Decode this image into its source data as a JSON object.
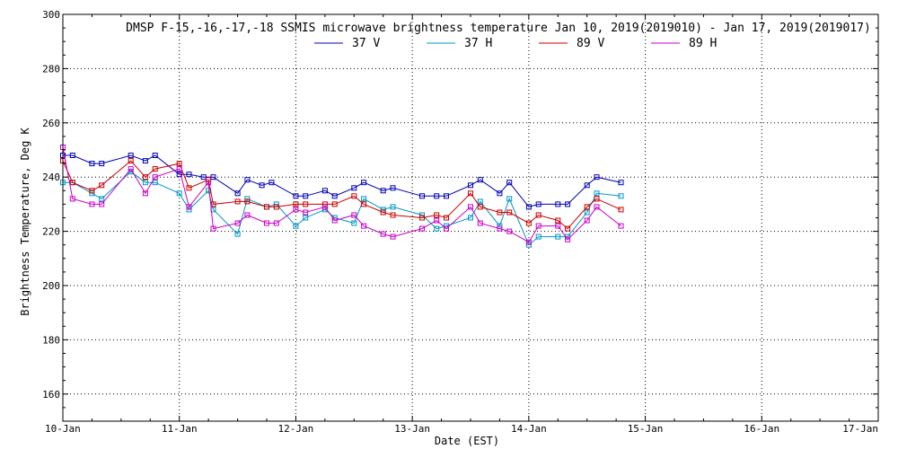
{
  "chart_data": {
    "type": "line",
    "title": "DMSP F-15,-16,-17,-18 SSMIS microwave brightness temperature Jan 10, 2019(2019010) - Jan 17, 2019(2019017)",
    "xlabel": "Date (EST)",
    "ylabel": "Brightness Temperature, Deg K",
    "x_ticks": [
      "10-Jan",
      "11-Jan",
      "12-Jan",
      "13-Jan",
      "14-Jan",
      "15-Jan",
      "16-Jan",
      "17-Jan"
    ],
    "y_ticks": [
      160,
      180,
      200,
      220,
      240,
      260,
      280,
      300
    ],
    "xlim": [
      "2019-01-10 00:00",
      "2019-01-17 00:00"
    ],
    "ylim": [
      150,
      300
    ],
    "grid": true,
    "legend_position": "top-center",
    "series": [
      {
        "name": "37 V",
        "color": "#0000b4",
        "x": [
          "2019-01-10 00:00",
          "2019-01-10 02:00",
          "2019-01-10 06:00",
          "2019-01-10 08:00",
          "2019-01-10 14:00",
          "2019-01-10 17:00",
          "2019-01-10 19:00",
          "2019-01-11 00:00",
          "2019-01-11 02:00",
          "2019-01-11 05:00",
          "2019-01-11 07:00",
          "2019-01-11 12:00",
          "2019-01-11 14:00",
          "2019-01-11 17:00",
          "2019-01-11 19:00",
          "2019-01-12 00:00",
          "2019-01-12 02:00",
          "2019-01-12 06:00",
          "2019-01-12 08:00",
          "2019-01-12 12:00",
          "2019-01-12 14:00",
          "2019-01-12 18:00",
          "2019-01-12 20:00",
          "2019-01-13 02:00",
          "2019-01-13 05:00",
          "2019-01-13 07:00",
          "2019-01-13 12:00",
          "2019-01-13 14:00",
          "2019-01-13 18:00",
          "2019-01-13 20:00",
          "2019-01-14 00:00",
          "2019-01-14 02:00",
          "2019-01-14 06:00",
          "2019-01-14 08:00",
          "2019-01-14 12:00",
          "2019-01-14 14:00",
          "2019-01-14 19:00"
        ],
        "values": [
          248,
          248,
          245,
          245,
          248,
          246,
          248,
          241,
          241,
          240,
          240,
          234,
          239,
          237,
          238,
          233,
          233,
          235,
          233,
          236,
          238,
          235,
          236,
          233,
          233,
          233,
          237,
          239,
          234,
          238,
          229,
          230,
          230,
          230,
          237,
          240,
          238
        ]
      },
      {
        "name": "37 H",
        "color": "#0096c8",
        "x": [
          "2019-01-10 00:00",
          "2019-01-10 02:00",
          "2019-01-10 06:00",
          "2019-01-10 08:00",
          "2019-01-10 14:00",
          "2019-01-10 17:00",
          "2019-01-10 19:00",
          "2019-01-11 00:00",
          "2019-01-11 02:00",
          "2019-01-11 06:00",
          "2019-01-11 07:00",
          "2019-01-11 12:00",
          "2019-01-11 14:00",
          "2019-01-11 18:00",
          "2019-01-11 20:00",
          "2019-01-12 00:00",
          "2019-01-12 02:00",
          "2019-01-12 06:00",
          "2019-01-12 08:00",
          "2019-01-12 12:00",
          "2019-01-12 14:00",
          "2019-01-12 18:00",
          "2019-01-12 20:00",
          "2019-01-13 02:00",
          "2019-01-13 05:00",
          "2019-01-13 07:00",
          "2019-01-13 12:00",
          "2019-01-13 14:00",
          "2019-01-13 18:00",
          "2019-01-13 20:00",
          "2019-01-14 00:00",
          "2019-01-14 02:00",
          "2019-01-14 06:00",
          "2019-01-14 08:00",
          "2019-01-14 12:00",
          "2019-01-14 14:00",
          "2019-01-14 19:00"
        ],
        "values": [
          238,
          238,
          234,
          232,
          242,
          238,
          238,
          234,
          228,
          235,
          228,
          219,
          232,
          229,
          230,
          222,
          225,
          228,
          225,
          223,
          232,
          228,
          229,
          226,
          221,
          222,
          225,
          231,
          222,
          232,
          215,
          218,
          218,
          218,
          227,
          234,
          233
        ]
      },
      {
        "name": "89 V",
        "color": "#c80000",
        "x": [
          "2019-01-10 00:00",
          "2019-01-10 02:00",
          "2019-01-10 06:00",
          "2019-01-10 08:00",
          "2019-01-10 14:00",
          "2019-01-10 17:00",
          "2019-01-10 19:00",
          "2019-01-11 00:00",
          "2019-01-11 02:00",
          "2019-01-11 06:00",
          "2019-01-11 07:00",
          "2019-01-11 12:00",
          "2019-01-11 14:00",
          "2019-01-11 18:00",
          "2019-01-11 20:00",
          "2019-01-12 00:00",
          "2019-01-12 02:00",
          "2019-01-12 06:00",
          "2019-01-12 08:00",
          "2019-01-12 12:00",
          "2019-01-12 14:00",
          "2019-01-12 18:00",
          "2019-01-12 20:00",
          "2019-01-13 02:00",
          "2019-01-13 05:00",
          "2019-01-13 07:00",
          "2019-01-13 12:00",
          "2019-01-13 14:00",
          "2019-01-13 18:00",
          "2019-01-13 20:00",
          "2019-01-14 00:00",
          "2019-01-14 02:00",
          "2019-01-14 06:00",
          "2019-01-14 08:00",
          "2019-01-14 12:00",
          "2019-01-14 14:00",
          "2019-01-14 19:00"
        ],
        "values": [
          246,
          238,
          235,
          237,
          246,
          240,
          243,
          245,
          236,
          239,
          230,
          231,
          231,
          229,
          229,
          230,
          230,
          230,
          230,
          233,
          230,
          227,
          226,
          225,
          226,
          225,
          234,
          229,
          227,
          227,
          223,
          226,
          224,
          221,
          229,
          232,
          228
        ]
      },
      {
        "name": "89 H",
        "color": "#c800c8",
        "x": [
          "2019-01-10 00:00",
          "2019-01-10 02:00",
          "2019-01-10 06:00",
          "2019-01-10 08:00",
          "2019-01-10 14:00",
          "2019-01-10 17:00",
          "2019-01-10 19:00",
          "2019-01-11 00:00",
          "2019-01-11 02:00",
          "2019-01-11 06:00",
          "2019-01-11 07:00",
          "2019-01-11 12:00",
          "2019-01-11 14:00",
          "2019-01-11 18:00",
          "2019-01-11 20:00",
          "2019-01-12 00:00",
          "2019-01-12 02:00",
          "2019-01-12 06:00",
          "2019-01-12 08:00",
          "2019-01-12 12:00",
          "2019-01-12 14:00",
          "2019-01-12 18:00",
          "2019-01-12 20:00",
          "2019-01-13 02:00",
          "2019-01-13 05:00",
          "2019-01-13 07:00",
          "2019-01-13 12:00",
          "2019-01-13 14:00",
          "2019-01-13 18:00",
          "2019-01-13 20:00",
          "2019-01-14 00:00",
          "2019-01-14 02:00",
          "2019-01-14 06:00",
          "2019-01-14 08:00",
          "2019-01-14 12:00",
          "2019-01-14 14:00",
          "2019-01-14 19:00"
        ],
        "values": [
          251,
          232,
          230,
          230,
          243,
          234,
          240,
          243,
          229,
          238,
          221,
          223,
          226,
          223,
          223,
          228,
          227,
          229,
          224,
          226,
          222,
          219,
          218,
          221,
          224,
          221,
          229,
          223,
          221,
          220,
          216,
          222,
          222,
          217,
          224,
          229,
          222
        ]
      }
    ]
  }
}
